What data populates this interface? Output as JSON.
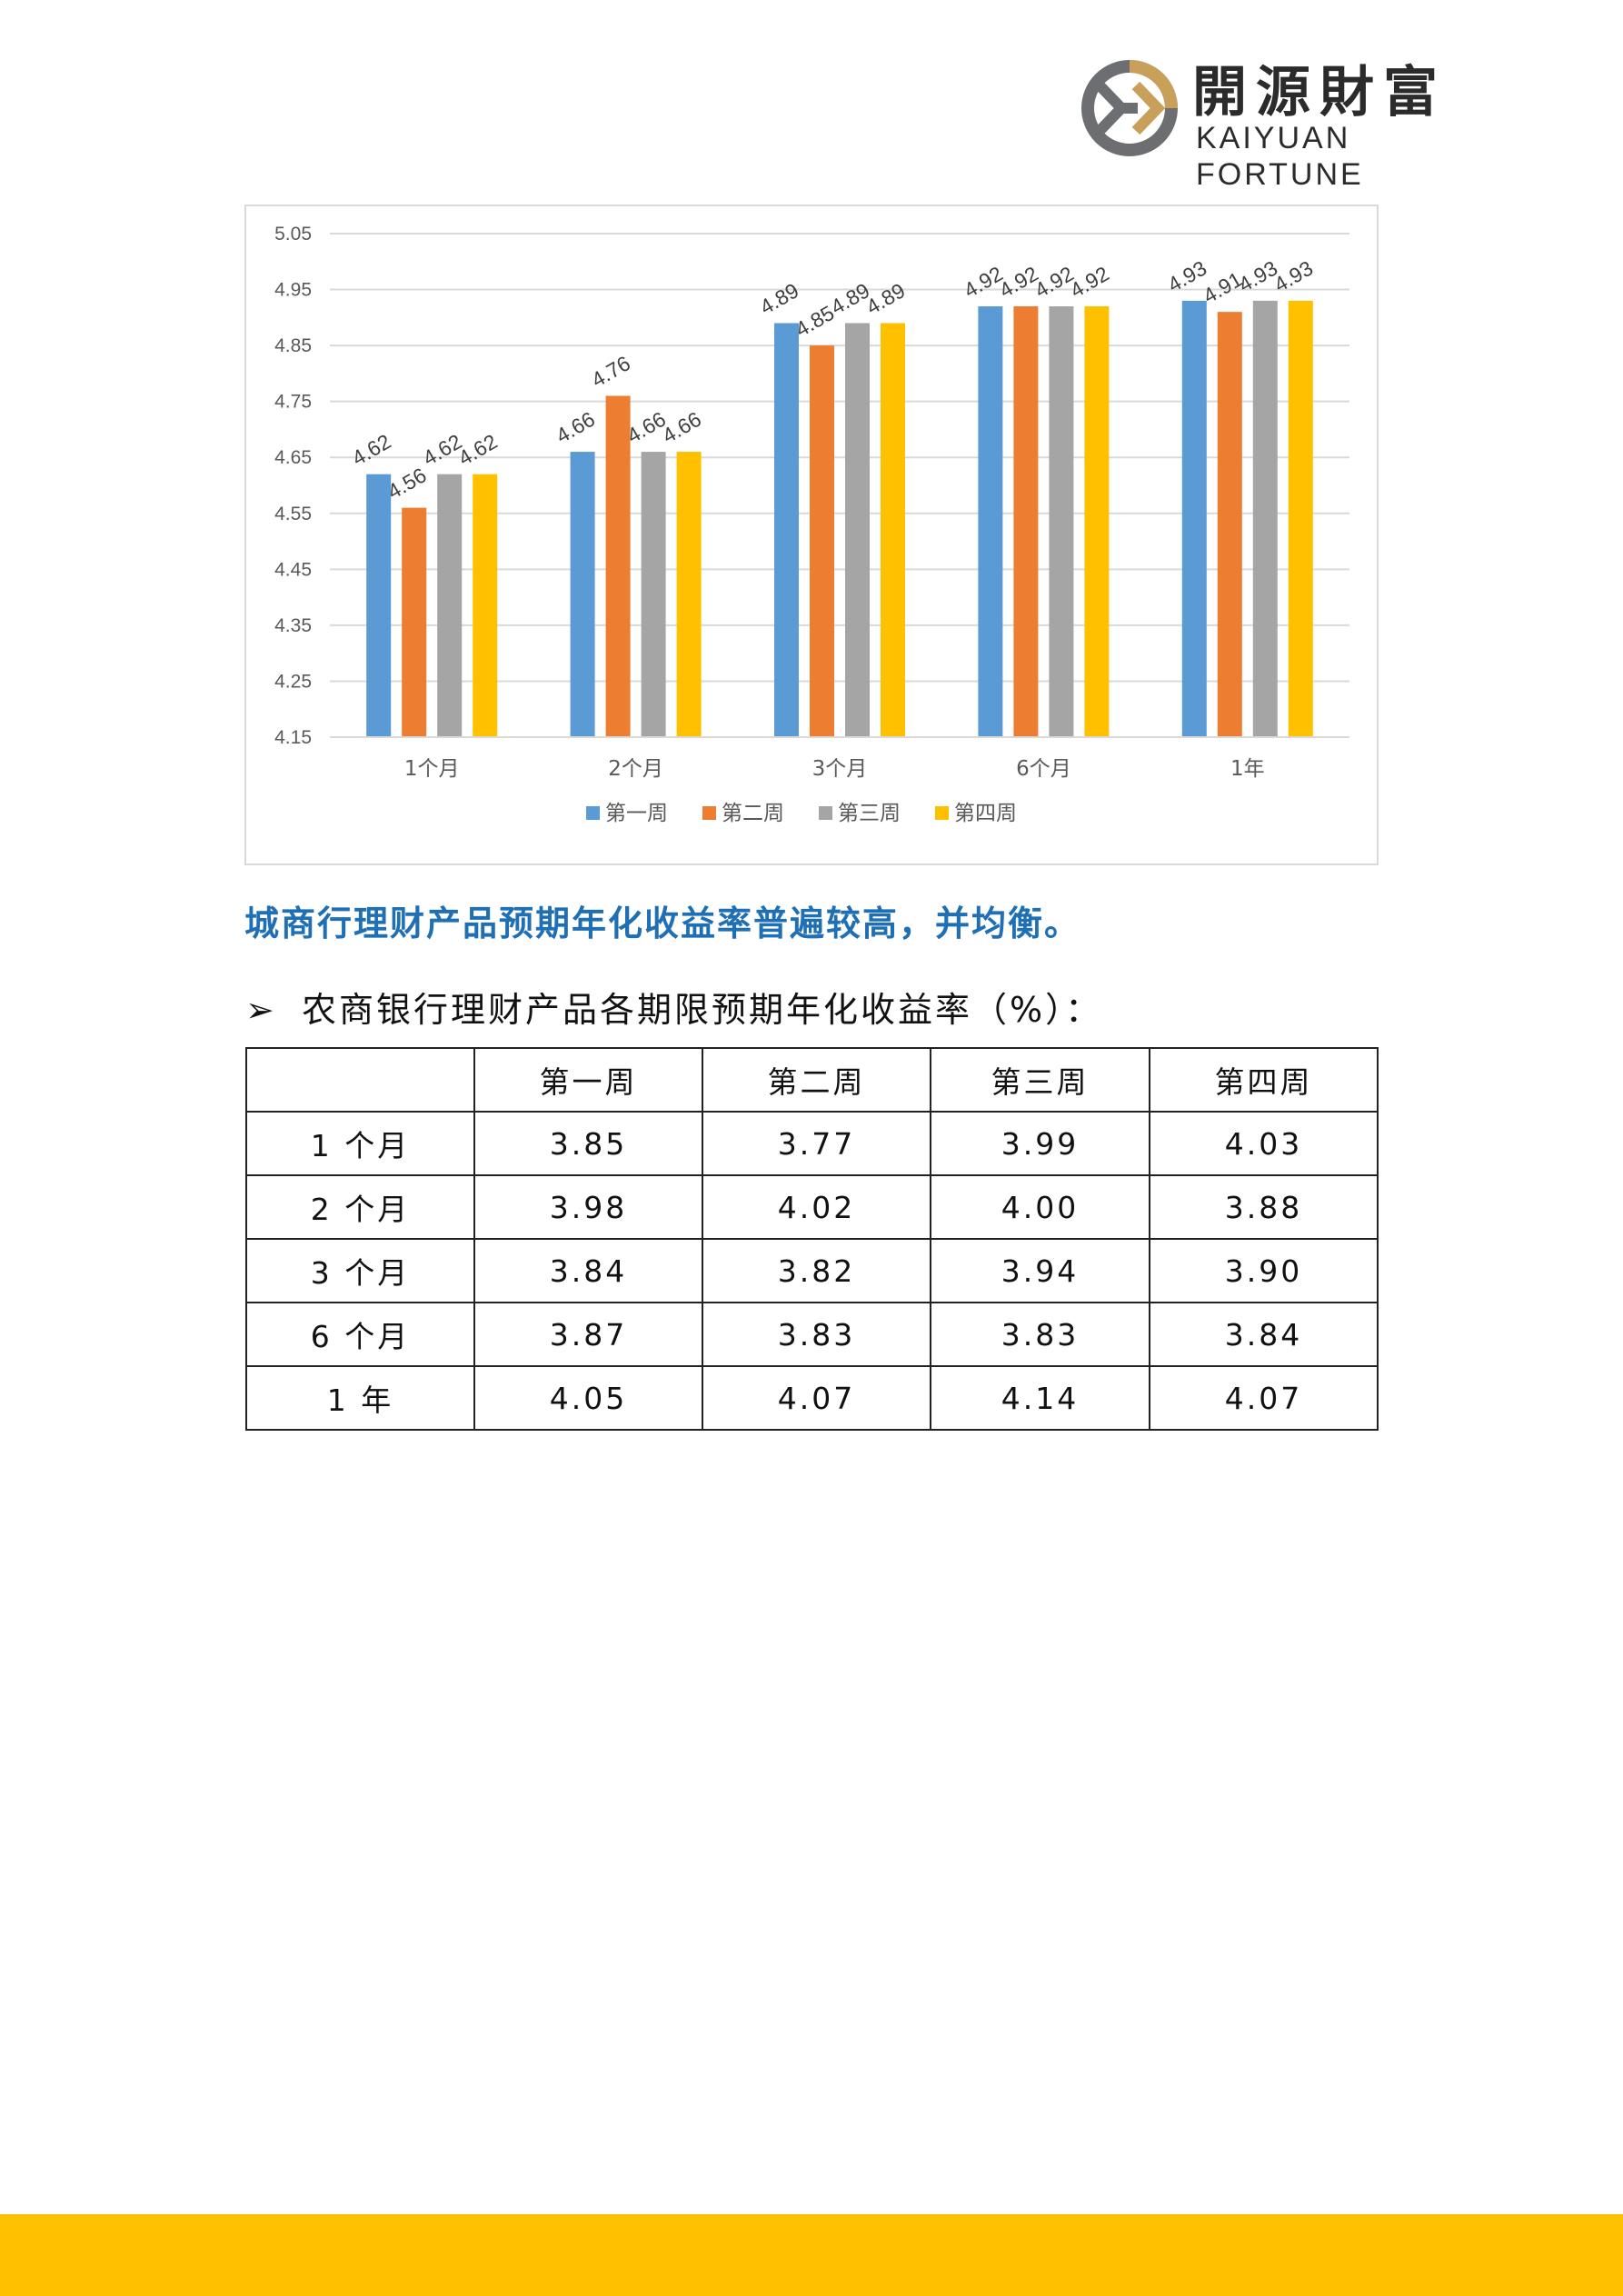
{
  "logo": {
    "name_cn": "開源財富",
    "name_en": "KAIYUAN FORTUNE",
    "colors": {
      "gold": "#c9a05a",
      "gray": "#6d6e71"
    }
  },
  "chart_data": {
    "type": "bar",
    "categories": [
      "1个月",
      "2个月",
      "3个月",
      "6个月",
      "1年"
    ],
    "series": [
      {
        "name": "第一周",
        "color": "#5b9bd5",
        "values": [
          4.62,
          4.66,
          4.89,
          4.92,
          4.93
        ]
      },
      {
        "name": "第二周",
        "color": "#ed7d31",
        "values": [
          4.56,
          4.76,
          4.85,
          4.92,
          4.91
        ]
      },
      {
        "name": "第三周",
        "color": "#a5a5a5",
        "values": [
          4.62,
          4.66,
          4.89,
          4.92,
          4.93
        ]
      },
      {
        "name": "第四周",
        "color": "#ffc000",
        "values": [
          4.62,
          4.66,
          4.89,
          4.92,
          4.93
        ]
      }
    ],
    "ylim": [
      4.15,
      5.05
    ],
    "yticks": [
      "5.05",
      "4.95",
      "4.85",
      "4.75",
      "4.65",
      "4.55",
      "4.45",
      "4.35",
      "4.25",
      "4.15"
    ],
    "grid": true,
    "legend": "bottom",
    "title": "",
    "xlabel": "",
    "ylabel": ""
  },
  "note": "城商行理财产品预期年化收益率普遍较高，并均衡。",
  "section": {
    "arrow": "➢",
    "title": "农商银行理财产品各期限预期年化收益率（%）："
  },
  "table": {
    "header": [
      "",
      "第一周",
      "第二周",
      "第三周",
      "第四周"
    ],
    "rows": [
      [
        "1 个月",
        "3.85",
        "3.77",
        "3.99",
        "4.03"
      ],
      [
        "2 个月",
        "3.98",
        "4.02",
        "4.00",
        "3.88"
      ],
      [
        "3 个月",
        "3.84",
        "3.82",
        "3.94",
        "3.90"
      ],
      [
        "6 个月",
        "3.87",
        "3.83",
        "3.83",
        "3.84"
      ],
      [
        "1 年",
        "4.05",
        "4.07",
        "4.14",
        "4.07"
      ]
    ]
  },
  "footer": {
    "color": "#ffc000"
  }
}
